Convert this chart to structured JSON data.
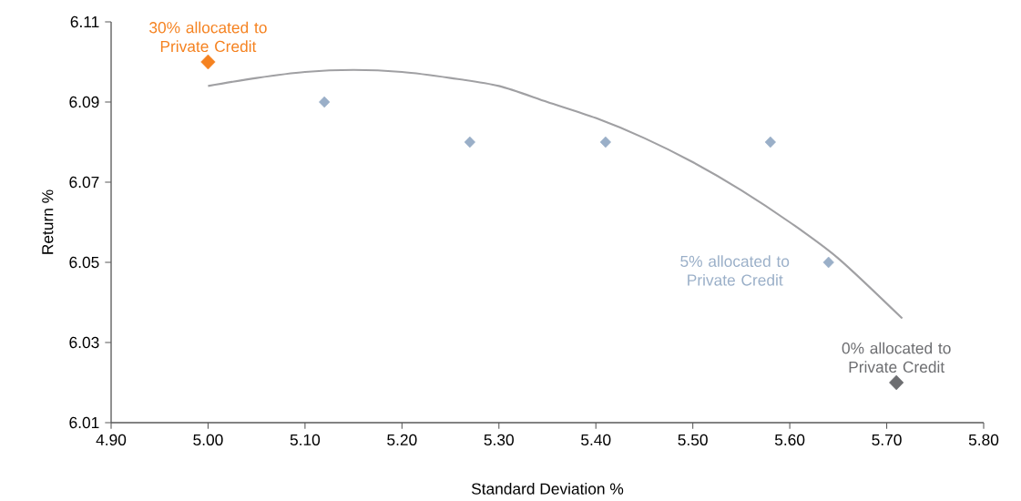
{
  "chart_data": {
    "type": "scatter",
    "xlabel": "Standard Deviation %",
    "ylabel": "Return %",
    "xlim": [
      4.9,
      5.8
    ],
    "xticks": [
      {
        "value": 4.9,
        "label": "4.90"
      },
      {
        "value": 5.0,
        "label": "5.00"
      },
      {
        "value": 5.1,
        "label": "5.10"
      },
      {
        "value": 5.2,
        "label": "5.20"
      },
      {
        "value": 5.3,
        "label": "5.30"
      },
      {
        "value": 5.4,
        "label": "5.40"
      },
      {
        "value": 5.5,
        "label": "5.50"
      },
      {
        "value": 5.6,
        "label": "5.60"
      },
      {
        "value": 5.7,
        "label": "5.70"
      },
      {
        "value": 5.8,
        "label": "5.80"
      }
    ],
    "ylim": [
      6.01,
      6.11
    ],
    "yticks": [
      6.01,
      6.03,
      6.05,
      6.07,
      6.09,
      6.11
    ],
    "marker": "diamond",
    "grid": false,
    "series": [
      {
        "type": "line",
        "marker": "none",
        "color": "#a0a0a3",
        "x": [
          5.0,
          5.05,
          5.1,
          5.15,
          5.2,
          5.25,
          5.3,
          5.35,
          5.4,
          5.45,
          5.5,
          5.55,
          5.6,
          5.65,
          5.716
        ],
        "values": [
          6.094,
          6.096,
          6.0975,
          6.098,
          6.0975,
          6.096,
          6.094,
          6.09,
          6.086,
          6.081,
          6.075,
          6.068,
          6.06,
          6.051,
          6.036
        ]
      },
      {
        "color": "#9aafc8",
        "x": [
          5.12,
          5.27,
          5.41,
          5.58,
          5.64
        ],
        "values": [
          6.09,
          6.08,
          6.08,
          6.08,
          6.05
        ]
      },
      {
        "color": "#f58220",
        "x": [
          5.0
        ],
        "values": [
          6.1
        ]
      },
      {
        "color": "#6d6e71",
        "x": [
          5.71
        ],
        "values": [
          6.02
        ]
      }
    ],
    "annotations": [
      {
        "text": "30% allocated to Private Credit",
        "x": 5.0,
        "y": 6.1
      },
      {
        "text": "5% allocated to Private Credit",
        "x": 5.64,
        "y": 6.05
      },
      {
        "text": "0% allocated to Private Credit",
        "x": 5.71,
        "y": 6.02
      }
    ]
  }
}
